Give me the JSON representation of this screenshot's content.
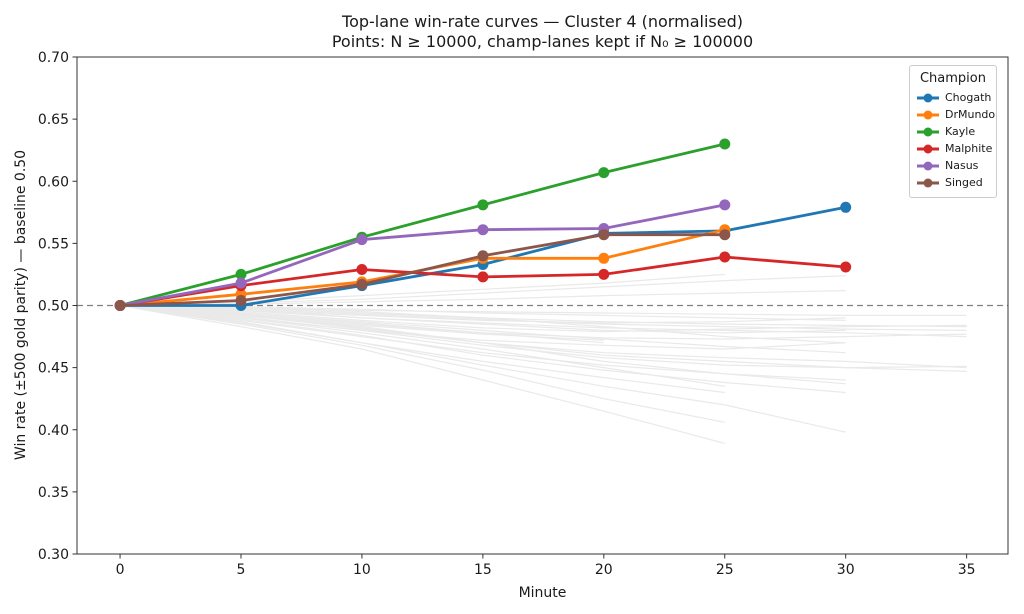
{
  "title": "Top-lane win-rate curves — Cluster 4 (normalised)",
  "subtitle": "Points: N ≥ 10000, champ-lanes kept if N₀ ≥ 100000",
  "legend": {
    "title": "Champion",
    "entries": [
      "Chogath",
      "DrMundo",
      "Kayle",
      "Malphite",
      "Nasus",
      "Singed"
    ]
  },
  "colors": {
    "blue": "#1f77b4",
    "orange": "#ff7f0e",
    "green": "#2ca02c",
    "red": "#d62728",
    "purple": "#9467bd",
    "brown": "#8c564b",
    "baseline_gray": "#808080",
    "background_line": "#e9e9e9",
    "spine": "#333333",
    "text": "#1a1a1a"
  },
  "chart_data": {
    "type": "line",
    "title": "Top-lane win-rate curves — Cluster 4 (normalised)",
    "subtitle": "Points: N ≥ 10000, champ-lanes kept if N₀ ≥ 100000",
    "xlabel": "Minute",
    "ylabel": "Win rate (±500 gold parity) — baseline 0.50",
    "xlim": [
      -1.78,
      36.71
    ],
    "ylim": [
      0.3,
      0.7
    ],
    "xticks": [
      0,
      5,
      10,
      15,
      20,
      25,
      30,
      35
    ],
    "yticks": [
      0.3,
      0.35,
      0.4,
      0.45,
      0.5,
      0.55,
      0.6,
      0.65,
      0.7
    ],
    "grid": false,
    "legend_position": "upper right",
    "baseline": {
      "value": 0.5,
      "style": "dashed",
      "color": "#808080"
    },
    "series": [
      {
        "name": "Chogath",
        "color": "#1f77b4",
        "x": [
          0,
          5,
          10,
          15,
          20,
          25,
          30
        ],
        "y": [
          0.5,
          0.5,
          0.516,
          0.533,
          0.558,
          0.56,
          0.579
        ]
      },
      {
        "name": "DrMundo",
        "color": "#ff7f0e",
        "x": [
          0,
          5,
          10,
          15,
          20,
          25
        ],
        "y": [
          0.5,
          0.509,
          0.519,
          0.538,
          0.538,
          0.561
        ]
      },
      {
        "name": "Kayle",
        "color": "#2ca02c",
        "x": [
          0,
          5,
          10,
          15,
          20,
          25
        ],
        "y": [
          0.5,
          0.525,
          0.555,
          0.581,
          0.607,
          0.63
        ]
      },
      {
        "name": "Malphite",
        "color": "#d62728",
        "x": [
          0,
          5,
          10,
          15,
          20,
          25,
          30
        ],
        "y": [
          0.5,
          0.516,
          0.529,
          0.523,
          0.525,
          0.539,
          0.531
        ]
      },
      {
        "name": "Nasus",
        "color": "#9467bd",
        "x": [
          0,
          5,
          10,
          15,
          20,
          25
        ],
        "y": [
          0.5,
          0.518,
          0.553,
          0.561,
          0.562,
          0.581
        ]
      },
      {
        "name": "Singed",
        "color": "#8c564b",
        "x": [
          0,
          5,
          10,
          15,
          20,
          25
        ],
        "y": [
          0.5,
          0.504,
          0.517,
          0.54,
          0.557,
          0.557
        ]
      }
    ],
    "background_series": [
      {
        "x": [
          0,
          5,
          10,
          15,
          20,
          25,
          30
        ],
        "y": [
          0.5,
          0.497,
          0.49,
          0.485,
          0.48,
          0.478,
          0.48
        ]
      },
      {
        "x": [
          0,
          5,
          10,
          15,
          20,
          25,
          30,
          35
        ],
        "y": [
          0.5,
          0.495,
          0.488,
          0.482,
          0.479,
          0.481,
          0.483,
          0.484
        ]
      },
      {
        "x": [
          0,
          5,
          10,
          15,
          20,
          25,
          30,
          35
        ],
        "y": [
          0.5,
          0.493,
          0.485,
          0.478,
          0.474,
          0.473,
          0.475,
          0.477
        ]
      },
      {
        "x": [
          0,
          5,
          10,
          15,
          20,
          25,
          30
        ],
        "y": [
          0.5,
          0.49,
          0.48,
          0.472,
          0.468,
          0.465,
          0.47
        ]
      },
      {
        "x": [
          0,
          5,
          10,
          15,
          20,
          25,
          30,
          35
        ],
        "y": [
          0.5,
          0.492,
          0.483,
          0.47,
          0.462,
          0.458,
          0.455,
          0.45
        ]
      },
      {
        "x": [
          0,
          5,
          10,
          15,
          20,
          25,
          30
        ],
        "y": [
          0.5,
          0.488,
          0.475,
          0.462,
          0.452,
          0.445,
          0.44
        ]
      },
      {
        "x": [
          0,
          5,
          10,
          15,
          20,
          25
        ],
        "y": [
          0.5,
          0.487,
          0.47,
          0.455,
          0.442,
          0.43
        ]
      },
      {
        "x": [
          0,
          5,
          10,
          15,
          20,
          25
        ],
        "y": [
          0.5,
          0.485,
          0.468,
          0.448,
          0.425,
          0.406
        ]
      },
      {
        "x": [
          0,
          5,
          10,
          15,
          20,
          25
        ],
        "y": [
          0.5,
          0.483,
          0.465,
          0.44,
          0.415,
          0.389
        ]
      },
      {
        "x": [
          0,
          5,
          10,
          15,
          20,
          25,
          30
        ],
        "y": [
          0.5,
          0.486,
          0.47,
          0.452,
          0.435,
          0.42,
          0.398
        ]
      },
      {
        "x": [
          0,
          5,
          10,
          15,
          20,
          25,
          30
        ],
        "y": [
          0.5,
          0.489,
          0.476,
          0.46,
          0.448,
          0.438,
          0.43
        ]
      },
      {
        "x": [
          0,
          5,
          10,
          15,
          20,
          25,
          30,
          35
        ],
        "y": [
          0.5,
          0.491,
          0.48,
          0.468,
          0.458,
          0.452,
          0.45,
          0.451
        ]
      },
      {
        "x": [
          0,
          5,
          10,
          15,
          20
        ],
        "y": [
          0.5,
          0.494,
          0.486,
          0.478,
          0.47
        ]
      },
      {
        "x": [
          0,
          5,
          10,
          15,
          20,
          25,
          30
        ],
        "y": [
          0.5,
          0.496,
          0.492,
          0.488,
          0.486,
          0.487,
          0.49
        ]
      },
      {
        "x": [
          0,
          5,
          10,
          15,
          20,
          25,
          30,
          35
        ],
        "y": [
          0.5,
          0.498,
          0.494,
          0.49,
          0.487,
          0.485,
          0.484,
          0.483
        ]
      },
      {
        "x": [
          0,
          5,
          10,
          15,
          20,
          25,
          30,
          35
        ],
        "y": [
          0.5,
          0.496,
          0.49,
          0.486,
          0.482,
          0.48,
          0.478,
          0.475
        ]
      },
      {
        "x": [
          0,
          5,
          10,
          15,
          20,
          25,
          30
        ],
        "y": [
          0.5,
          0.499,
          0.497,
          0.494,
          0.492,
          0.49,
          0.488
        ]
      },
      {
        "x": [
          0,
          5,
          10,
          15,
          20,
          25,
          30,
          35
        ],
        "y": [
          0.5,
          0.498,
          0.496,
          0.495,
          0.494,
          0.493,
          0.492,
          0.492
        ]
      },
      {
        "x": [
          0,
          5,
          10,
          15,
          20,
          25,
          30
        ],
        "y": [
          0.5,
          0.501,
          0.503,
          0.505,
          0.508,
          0.51,
          0.512
        ]
      },
      {
        "x": [
          0,
          5,
          10,
          15,
          20,
          25,
          30
        ],
        "y": [
          0.5,
          0.502,
          0.505,
          0.51,
          0.515,
          0.52,
          0.524
        ]
      },
      {
        "x": [
          0,
          5,
          10,
          15,
          20,
          25
        ],
        "y": [
          0.5,
          0.503,
          0.508,
          0.513,
          0.518,
          0.525
        ]
      },
      {
        "x": [
          0,
          5,
          10,
          15,
          20,
          25,
          30
        ],
        "y": [
          0.5,
          0.499,
          0.495,
          0.49,
          0.483,
          0.475,
          0.47
        ]
      },
      {
        "x": [
          0,
          5,
          10,
          15,
          20,
          25,
          30,
          35
        ],
        "y": [
          0.5,
          0.493,
          0.481,
          0.47,
          0.46,
          0.455,
          0.45,
          0.447
        ]
      },
      {
        "x": [
          0,
          5,
          10,
          15,
          20,
          25
        ],
        "y": [
          0.5,
          0.49,
          0.478,
          0.465,
          0.45,
          0.435
        ]
      },
      {
        "x": [
          0,
          5,
          10,
          15,
          20,
          25,
          30
        ],
        "y": [
          0.5,
          0.492,
          0.482,
          0.47,
          0.455,
          0.445,
          0.437
        ]
      },
      {
        "x": [
          0,
          5,
          10,
          15,
          20,
          25,
          30,
          35
        ],
        "y": [
          0.5,
          0.497,
          0.493,
          0.489,
          0.485,
          0.483,
          0.481,
          0.48
        ]
      },
      {
        "x": [
          0,
          5,
          10,
          15,
          20,
          25,
          30
        ],
        "y": [
          0.5,
          0.494,
          0.487,
          0.48,
          0.473,
          0.467,
          0.462
        ]
      },
      {
        "x": [
          0,
          5,
          10,
          15,
          20
        ],
        "y": [
          0.5,
          0.492,
          0.484,
          0.477,
          0.472
        ]
      }
    ]
  }
}
